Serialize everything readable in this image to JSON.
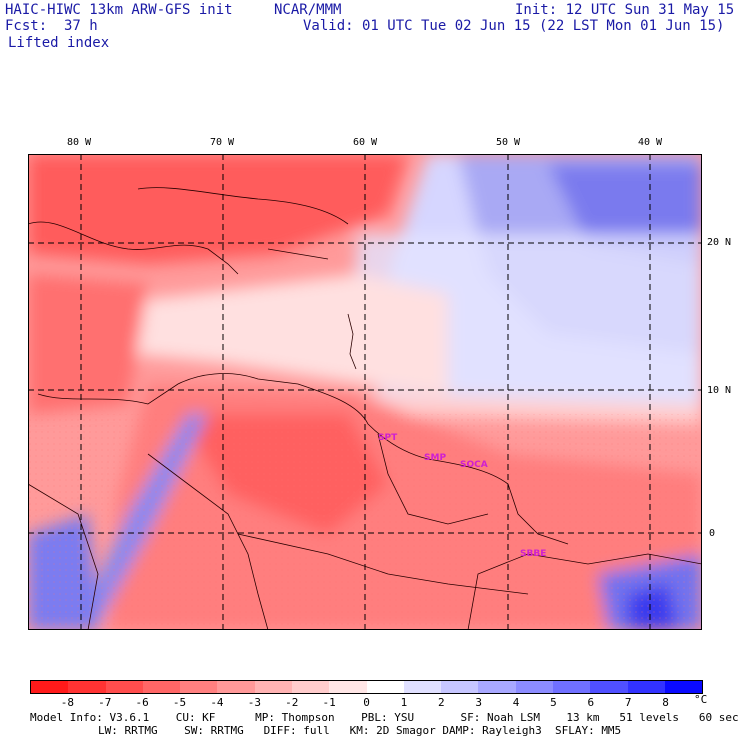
{
  "header": {
    "model": "HAIC-HIWC 13km ARW-GFS init",
    "org": "NCAR/MMM",
    "init": "Init: 12 UTC Sun 31 May 15",
    "fcst_label": "Fcst:",
    "fcst_value": "37 h",
    "valid": "Valid: 01 UTC Tue 02 Jun 15 (22 LST Mon 01 Jun 15)",
    "field": "Lifted index"
  },
  "map": {
    "lon_labels": [
      "80 W",
      "70 W",
      "60 W",
      "50 W",
      "40 W"
    ],
    "lat_labels": [
      "20 N",
      "10 N",
      "0"
    ],
    "sites": [
      "SPT",
      "SMP",
      "SOCA",
      "SBBE"
    ]
  },
  "colorbar": {
    "unit": "°C",
    "ticks": [
      "-8",
      "-7",
      "-6",
      "-5",
      "-4",
      "-3",
      "-2",
      "-1",
      "0",
      "1",
      "2",
      "3",
      "4",
      "5",
      "6",
      "7",
      "8"
    ],
    "colors": [
      "#ff1a1a",
      "#ff3333",
      "#ff4d4d",
      "#ff6666",
      "#ff8080",
      "#ff9999",
      "#ffb3b3",
      "#ffcccc",
      "#ffe6e6",
      "#ffffff",
      "#e0e0ff",
      "#c6c6ff",
      "#a8a8ff",
      "#8c8cff",
      "#7070ff",
      "#5050ff",
      "#3232ff",
      "#0a0aff"
    ]
  },
  "footer": {
    "line1": "Model Info: V3.6.1    CU: KF      MP: Thompson    PBL: YSU       SF: Noah LSM    13 km   51 levels   60 sec",
    "line2": "LW: RRTMG    SW: RRTMG   DIFF: full   KM: 2D Smagor DAMP: Rayleigh3  SFLAY: MM5"
  }
}
